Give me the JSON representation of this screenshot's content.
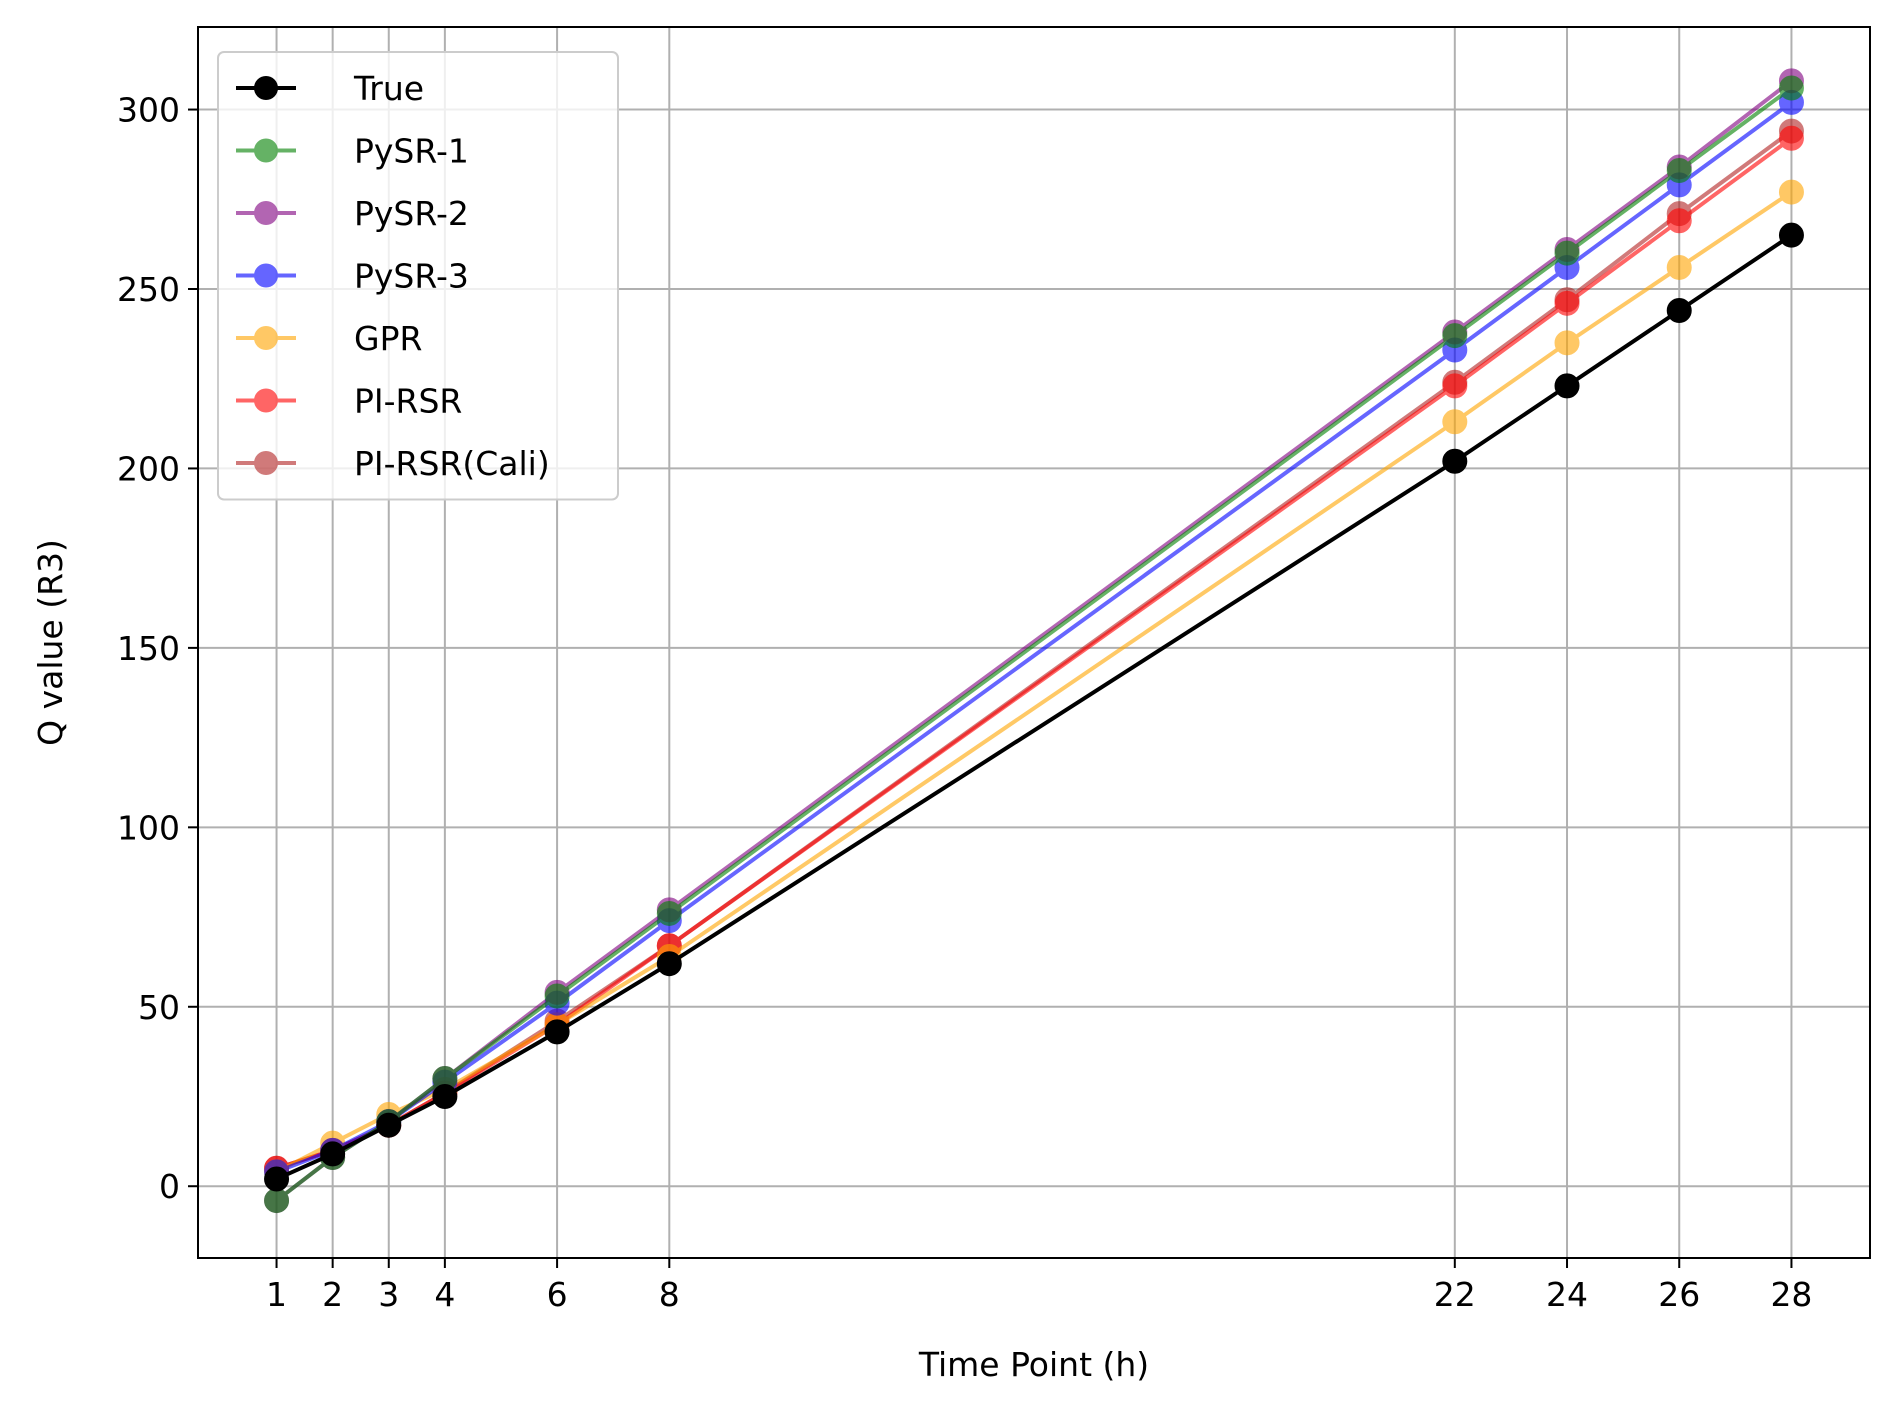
{
  "chart_data": {
    "type": "line",
    "xlabel": "Time Point (h)",
    "ylabel": "Q value (R3)",
    "x": [
      1,
      2,
      3,
      4,
      6,
      8,
      22,
      24,
      26,
      28
    ],
    "xticks": [
      1,
      2,
      3,
      4,
      6,
      8,
      22,
      24,
      26,
      28
    ],
    "yticks": [
      0,
      50,
      100,
      150,
      200,
      250,
      300
    ],
    "xlim": [
      -0.4,
      29.4
    ],
    "ylim": [
      -20,
      323
    ],
    "grid": true,
    "legend_position": "top-left",
    "series": [
      {
        "name": "True",
        "color": "#000000",
        "opacity": 1.0,
        "values": [
          2,
          9,
          17,
          25,
          43,
          62,
          202,
          223,
          244,
          265
        ]
      },
      {
        "name": "PySR-1",
        "color": "#008000",
        "opacity": 0.6,
        "values": [
          -4,
          8,
          18,
          30,
          53,
          76,
          237,
          260,
          283,
          306
        ]
      },
      {
        "name": "PySR-2",
        "color": "#800080",
        "opacity": 0.6,
        "values": [
          -4,
          8,
          18,
          30,
          54,
          77,
          238,
          261,
          284,
          308
        ]
      },
      {
        "name": "PySR-3",
        "color": "#0000ff",
        "opacity": 0.6,
        "values": [
          4,
          10,
          18,
          29,
          51,
          74,
          233,
          256,
          279,
          302
        ]
      },
      {
        "name": "GPR",
        "color": "#ffa500",
        "opacity": 0.6,
        "values": [
          4,
          12,
          20,
          27,
          45,
          64,
          213,
          235,
          256,
          277
        ]
      },
      {
        "name": "PI-RSR",
        "color": "#ff0000",
        "opacity": 0.6,
        "values": [
          5,
          10,
          17,
          26,
          45,
          67,
          223,
          246,
          269,
          292
        ]
      },
      {
        "name": "PI-RSR(Cali)",
        "color": "#b22222",
        "opacity": 0.6,
        "values": [
          5,
          10,
          17,
          26,
          46,
          67,
          224,
          247,
          271,
          294
        ]
      }
    ]
  }
}
